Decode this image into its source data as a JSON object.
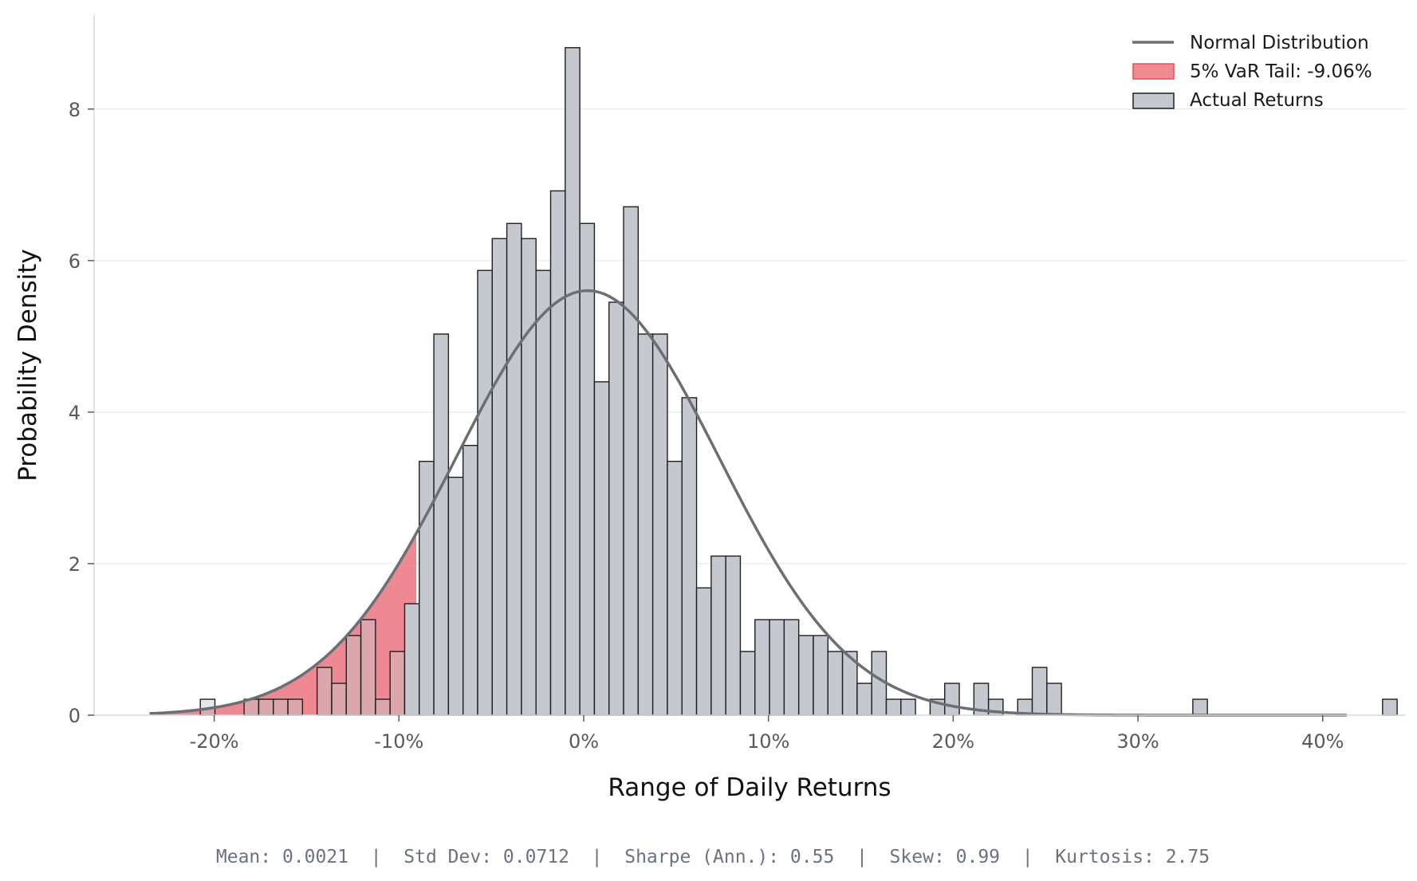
{
  "chart_data": {
    "type": "bar",
    "title": "",
    "xlabel": "Range of Daily Returns",
    "ylabel": "Probability Density",
    "xlim": [
      -0.265,
      0.445
    ],
    "ylim": [
      0,
      9.25
    ],
    "xticks": [
      {
        "value": -0.2,
        "label": "-20%"
      },
      {
        "value": -0.1,
        "label": "-10%"
      },
      {
        "value": 0.0,
        "label": "0%"
      },
      {
        "value": 0.1,
        "label": "10%"
      },
      {
        "value": 0.2,
        "label": "20%"
      },
      {
        "value": 0.3,
        "label": "30%"
      },
      {
        "value": 0.4,
        "label": "40%"
      }
    ],
    "yticks": [
      {
        "value": 0,
        "label": "0"
      },
      {
        "value": 2,
        "label": "2"
      },
      {
        "value": 4,
        "label": "4"
      },
      {
        "value": 6,
        "label": "6"
      },
      {
        "value": 8,
        "label": "8"
      }
    ],
    "grid": "horizontal",
    "legend_position": "top-right",
    "series": [
      {
        "name": "Actual Returns",
        "kind": "histogram",
        "bin_start": -0.2075,
        "bin_width": 0.0079,
        "color": "#c5c9cf",
        "edge_color": "#1f1f1f",
        "values": [
          0.21,
          0,
          0,
          0.21,
          0.21,
          0.21,
          0.21,
          0,
          0.63,
          0.42,
          1.05,
          1.26,
          0.21,
          0.84,
          1.47,
          3.35,
          5.03,
          3.14,
          3.56,
          5.87,
          6.29,
          6.49,
          6.29,
          5.87,
          6.92,
          8.81,
          6.49,
          4.4,
          5.45,
          6.71,
          5.03,
          5.03,
          3.35,
          4.19,
          1.68,
          2.1,
          2.1,
          0.84,
          1.26,
          1.26,
          1.26,
          1.05,
          1.05,
          0.84,
          0.84,
          0.42,
          0.84,
          0.21,
          0.21,
          0,
          0.21,
          0.42,
          0,
          0.42,
          0.21,
          0,
          0.21,
          0.63,
          0.42,
          0,
          0,
          0,
          0,
          0,
          0,
          0,
          0,
          0,
          0.21,
          0,
          0,
          0,
          0,
          0,
          0,
          0,
          0,
          0,
          0,
          0,
          0,
          0.21
        ]
      },
      {
        "name": "Normal Distribution",
        "kind": "line",
        "distribution": {
          "mean": 0.0021,
          "std": 0.0712
        },
        "x_range": [
          -0.235,
          0.413
        ],
        "color": "#6b6e74"
      },
      {
        "name": "5% VaR Tail: -9.06%",
        "kind": "area",
        "x_range": [
          -0.235,
          -0.0906
        ],
        "color": "#e8626f"
      }
    ],
    "legend": [
      {
        "label": "Normal Distribution",
        "kind": "line",
        "color": "#6b6e74"
      },
      {
        "label": "5% VaR Tail: -9.06%",
        "kind": "patch",
        "color": "#f08a92",
        "edge": "#e0505f"
      },
      {
        "label": "Actual Returns",
        "kind": "patch",
        "color": "#c5c9cf",
        "edge": "#1f1f1f"
      }
    ],
    "var_threshold": -0.0906
  },
  "stats": {
    "text": "Mean: 0.0021  |  Std Dev: 0.0712  |  Sharpe (Ann.): 0.55  |  Skew: 0.99  |  Kurtosis: 2.75"
  }
}
